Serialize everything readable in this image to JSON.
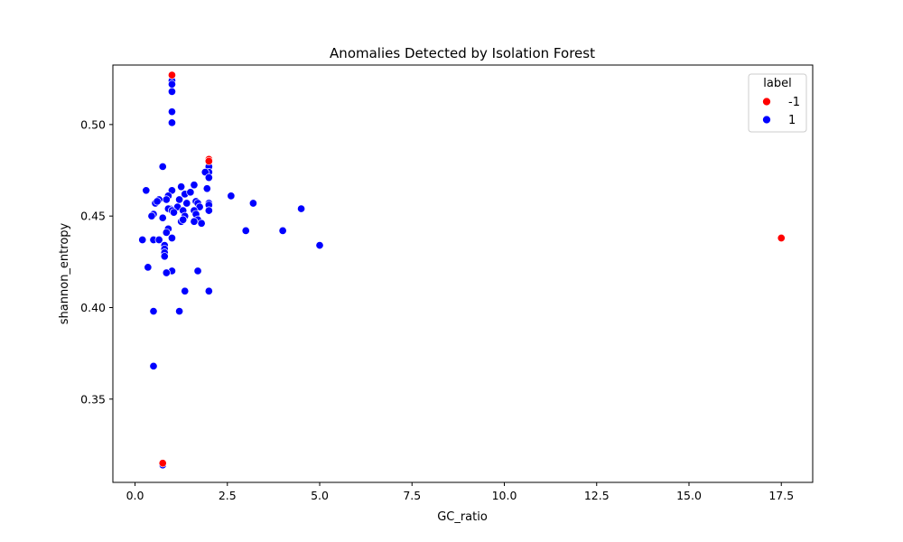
{
  "chart_data": {
    "type": "scatter",
    "title": "Anomalies Detected by Isolation Forest",
    "xlabel": "GC_ratio",
    "ylabel": "shannon_entropy",
    "xlim": [
      -0.6,
      18.35
    ],
    "ylim": [
      0.3045,
      0.5325
    ],
    "xticks": [
      0.0,
      2.5,
      5.0,
      7.5,
      10.0,
      12.5,
      15.0,
      17.5
    ],
    "xtick_labels": [
      "0.0",
      "2.5",
      "5.0",
      "7.5",
      "10.0",
      "12.5",
      "15.0",
      "17.5"
    ],
    "yticks": [
      0.35,
      0.4,
      0.45,
      0.5
    ],
    "ytick_labels": [
      "0.35",
      "0.40",
      "0.45",
      "0.50"
    ],
    "grid": false,
    "legend": {
      "title": "label",
      "placement": "top-right",
      "entries": [
        {
          "label": "-1",
          "color": "#ff0000"
        },
        {
          "label": "1",
          "color": "#0000ff"
        }
      ]
    },
    "series": [
      {
        "name": "1",
        "color": "#0000ff",
        "points": [
          [
            1.0,
            0.524
          ],
          [
            1.0,
            0.522
          ],
          [
            1.0,
            0.518
          ],
          [
            1.0,
            0.507
          ],
          [
            1.0,
            0.501
          ],
          [
            0.75,
            0.477
          ],
          [
            2.0,
            0.477
          ],
          [
            2.0,
            0.474
          ],
          [
            1.9,
            0.474
          ],
          [
            2.0,
            0.471
          ],
          [
            0.3,
            0.464
          ],
          [
            1.6,
            0.467
          ],
          [
            1.25,
            0.466
          ],
          [
            1.95,
            0.465
          ],
          [
            1.0,
            0.464
          ],
          [
            1.35,
            0.462
          ],
          [
            1.5,
            0.463
          ],
          [
            2.6,
            0.461
          ],
          [
            0.9,
            0.461
          ],
          [
            0.85,
            0.459
          ],
          [
            0.55,
            0.457
          ],
          [
            0.65,
            0.459
          ],
          [
            0.6,
            0.458
          ],
          [
            1.2,
            0.459
          ],
          [
            1.4,
            0.457
          ],
          [
            1.65,
            0.458
          ],
          [
            1.7,
            0.457
          ],
          [
            2.0,
            0.457
          ],
          [
            3.2,
            0.457
          ],
          [
            2.0,
            0.456
          ],
          [
            1.75,
            0.455
          ],
          [
            1.15,
            0.455
          ],
          [
            0.95,
            0.454
          ],
          [
            0.9,
            0.454
          ],
          [
            1.0,
            0.453
          ],
          [
            1.05,
            0.452
          ],
          [
            1.3,
            0.453
          ],
          [
            1.6,
            0.453
          ],
          [
            4.5,
            0.454
          ],
          [
            2.0,
            0.453
          ],
          [
            1.65,
            0.451
          ],
          [
            1.35,
            0.45
          ],
          [
            0.5,
            0.451
          ],
          [
            0.45,
            0.45
          ],
          [
            0.75,
            0.449
          ],
          [
            1.7,
            0.448
          ],
          [
            1.25,
            0.447
          ],
          [
            1.3,
            0.448
          ],
          [
            1.6,
            0.447
          ],
          [
            1.8,
            0.446
          ],
          [
            0.9,
            0.443
          ],
          [
            0.85,
            0.441
          ],
          [
            3.0,
            0.442
          ],
          [
            4.0,
            0.442
          ],
          [
            0.2,
            0.437
          ],
          [
            0.5,
            0.437
          ],
          [
            0.65,
            0.437
          ],
          [
            1.0,
            0.438
          ],
          [
            0.8,
            0.434
          ],
          [
            0.8,
            0.432
          ],
          [
            0.8,
            0.43
          ],
          [
            0.8,
            0.428
          ],
          [
            5.0,
            0.434
          ],
          [
            0.35,
            0.422
          ],
          [
            1.0,
            0.42
          ],
          [
            1.7,
            0.42
          ],
          [
            0.85,
            0.419
          ],
          [
            1.35,
            0.409
          ],
          [
            2.0,
            0.409
          ],
          [
            0.5,
            0.398
          ],
          [
            1.2,
            0.398
          ],
          [
            0.5,
            0.368
          ],
          [
            0.75,
            0.314
          ]
        ]
      },
      {
        "name": "-1",
        "color": "#ff0000",
        "points": [
          [
            1.0,
            0.527
          ],
          [
            2.0,
            0.481
          ],
          [
            2.0,
            0.48
          ],
          [
            0.75,
            0.315
          ],
          [
            17.5,
            0.438
          ]
        ]
      }
    ]
  }
}
